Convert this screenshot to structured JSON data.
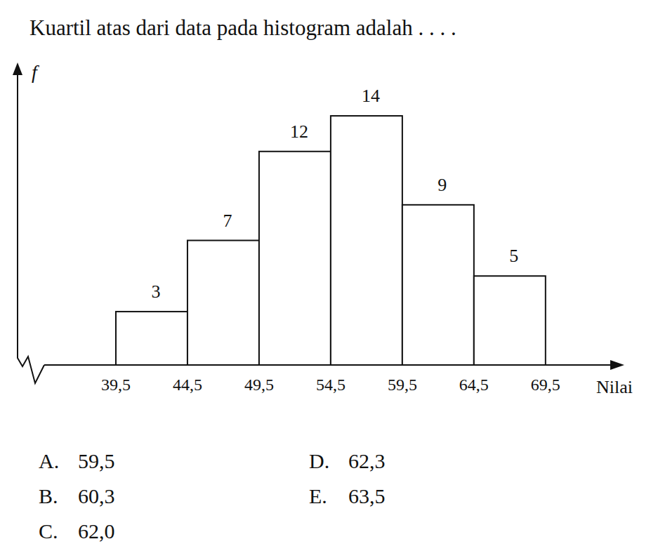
{
  "question": "Kuartil atas dari data pada histogram adalah . . . .",
  "options": [
    {
      "letter": "A.",
      "text": "59,5"
    },
    {
      "letter": "B.",
      "text": "60,3"
    },
    {
      "letter": "C.",
      "text": "62,0"
    },
    {
      "letter": "D.",
      "text": "62,3"
    },
    {
      "letter": "E.",
      "text": "63,5"
    }
  ],
  "chart_data": {
    "type": "histogram",
    "y_label": "f",
    "x_label": "Nilai",
    "bins": [
      39.5,
      44.5,
      49.5,
      54.5,
      59.5,
      64.5,
      69.5
    ],
    "values": [
      3,
      7,
      12,
      14,
      9,
      5
    ],
    "color": "#ffffff",
    "xlim": [
      34.5,
      75
    ],
    "xticks": [
      {
        "value": 39.5,
        "label": "39,5"
      },
      {
        "value": 44.5,
        "label": "44,5"
      },
      {
        "value": 49.5,
        "label": "49,5"
      },
      {
        "value": 54.5,
        "label": "54,5"
      },
      {
        "value": 59.5,
        "label": "59,5"
      },
      {
        "value": 64.5,
        "label": "64,5"
      },
      {
        "value": 69.5,
        "label": "69,5"
      }
    ],
    "ylim": [
      0,
      17
    ],
    "grid": false,
    "data_labels": true,
    "tick_labels": "x"
  }
}
